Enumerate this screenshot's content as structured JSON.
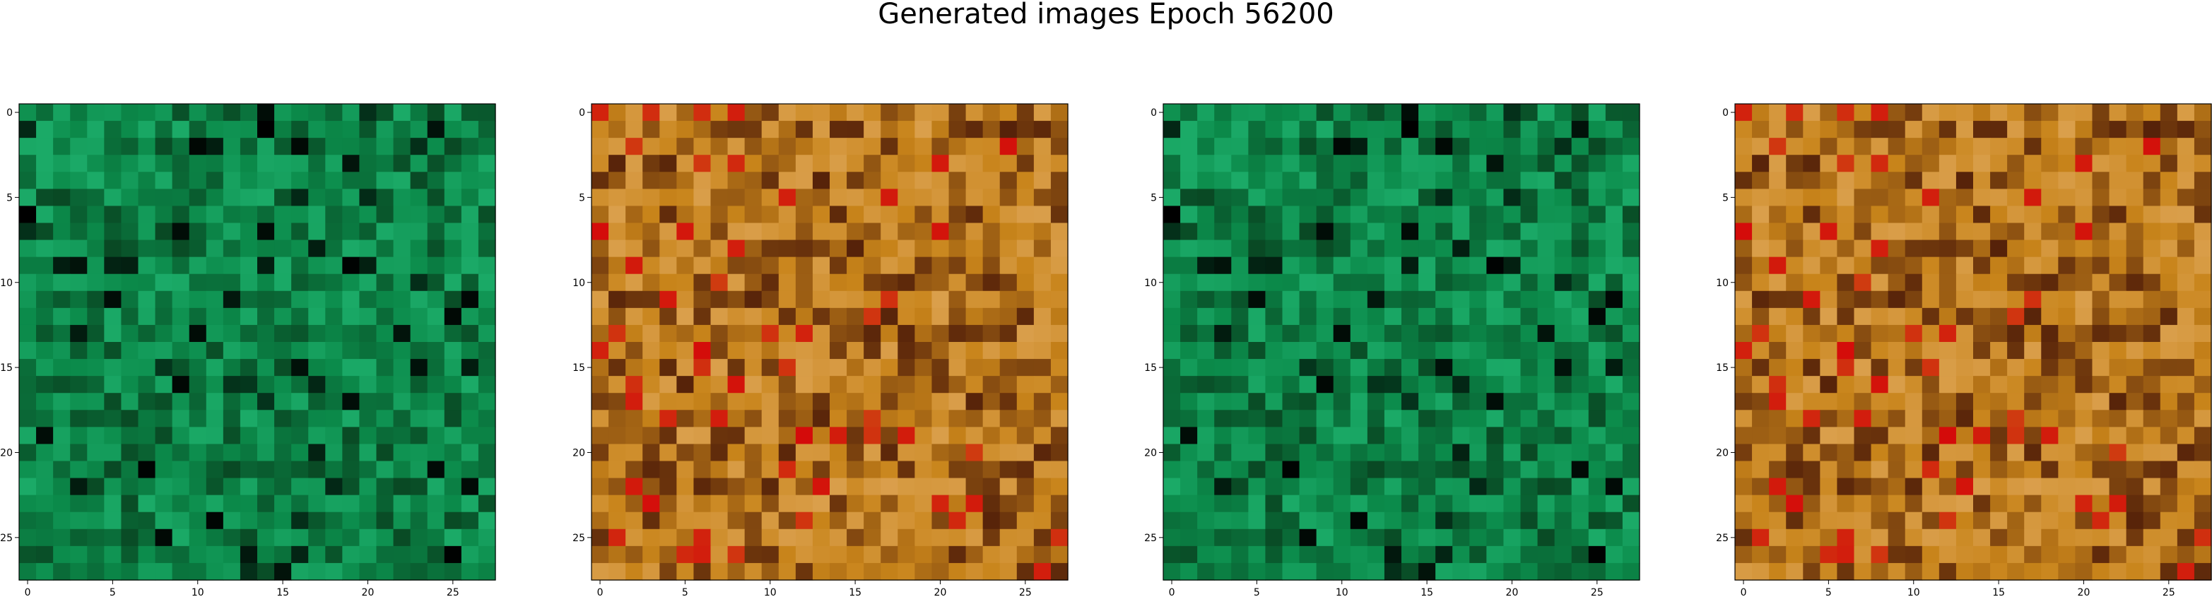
{
  "figure": {
    "title": "Generated images Epoch 56200"
  },
  "chart_data": [
    {
      "type": "heatmap",
      "panel": 1,
      "palette": "green",
      "grid_size": 28,
      "xticks": [
        "0",
        "5",
        "10",
        "15",
        "20",
        "25"
      ],
      "yticks": [
        "0",
        "5",
        "10",
        "15",
        "20",
        "25"
      ],
      "xlim": [
        -0.5,
        27.5
      ],
      "ylim": [
        27.5,
        -0.5
      ],
      "title": "",
      "xlabel": "",
      "ylabel": "",
      "colors": {
        "base": "#0b8a4a",
        "dark": "#08381a",
        "light": "#2fd28c",
        "accent": "#000000"
      }
    },
    {
      "type": "heatmap",
      "panel": 2,
      "palette": "warm",
      "grid_size": 28,
      "xticks": [
        "0",
        "5",
        "10",
        "15",
        "20",
        "25"
      ],
      "yticks": [
        "0",
        "5",
        "10",
        "15",
        "20",
        "25"
      ],
      "xlim": [
        -0.5,
        27.5
      ],
      "ylim": [
        27.5,
        -0.5
      ],
      "title": "",
      "xlabel": "",
      "ylabel": "",
      "colors": {
        "base": "#c8841a",
        "dark": "#3a0a05",
        "light": "#f0c088",
        "accent": "#d40a0a"
      }
    },
    {
      "type": "heatmap",
      "panel": 3,
      "palette": "green",
      "grid_size": 28,
      "xticks": [
        "0",
        "5",
        "10",
        "15",
        "20",
        "25"
      ],
      "yticks": [
        "0",
        "5",
        "10",
        "15",
        "20",
        "25"
      ],
      "xlim": [
        -0.5,
        27.5
      ],
      "ylim": [
        27.5,
        -0.5
      ],
      "title": "",
      "xlabel": "",
      "ylabel": "",
      "colors": {
        "base": "#0b8a4a",
        "dark": "#08381a",
        "light": "#2fd28c",
        "accent": "#000000"
      }
    },
    {
      "type": "heatmap",
      "panel": 4,
      "palette": "warm",
      "grid_size": 28,
      "xticks": [
        "0",
        "5",
        "10",
        "15",
        "20",
        "25"
      ],
      "yticks": [
        "0",
        "5",
        "10",
        "15",
        "20",
        "25"
      ],
      "xlim": [
        -0.5,
        27.5
      ],
      "ylim": [
        27.5,
        -0.5
      ],
      "title": "",
      "xlabel": "",
      "ylabel": "",
      "colors": {
        "base": "#c8841a",
        "dark": "#3a0a05",
        "light": "#f0c088",
        "accent": "#d40a0a"
      }
    }
  ]
}
